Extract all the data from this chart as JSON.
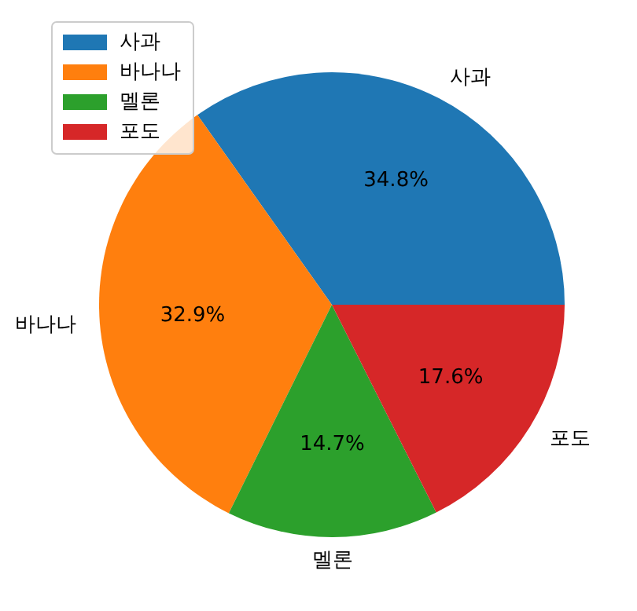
{
  "chart_data": {
    "type": "pie",
    "categories": [
      "사과",
      "바나나",
      "멜론",
      "포도"
    ],
    "values": [
      34.8,
      32.9,
      14.7,
      17.6
    ],
    "colors": [
      "#1f77b4",
      "#ff7f0e",
      "#2ca02c",
      "#d62728"
    ],
    "value_labels": [
      "34.8%",
      "32.9%",
      "14.7%",
      "17.6%"
    ],
    "legend": "top left"
  }
}
